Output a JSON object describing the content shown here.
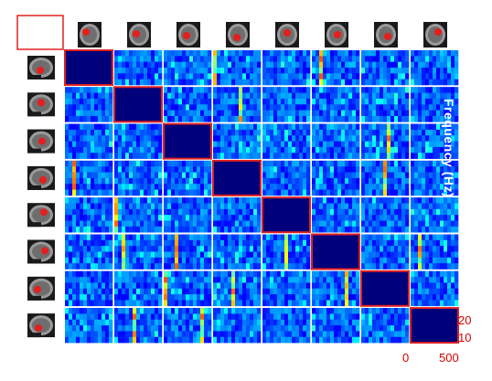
{
  "figure": {
    "grid_size": 8,
    "axis_label": "Frequency (Hz)",
    "freq_ticks": [
      "20",
      "10"
    ],
    "time_ticks": [
      "0",
      "500"
    ],
    "colors": {
      "diag_border": "#e02020",
      "diag_fill": "#00007a",
      "background_blue": "#0a2ac8",
      "tick_text": "#d40000",
      "gap": "#ffffff",
      "marker": "#e61e1e"
    },
    "row_thumbnails": [
      "sagittal-mri-thumbnail-1",
      "sagittal-mri-thumbnail-2",
      "sagittal-mri-thumbnail-3",
      "sagittal-mri-thumbnail-4",
      "sagittal-mri-thumbnail-5",
      "sagittal-mri-thumbnail-6",
      "sagittal-mri-thumbnail-7",
      "sagittal-mri-thumbnail-8"
    ],
    "col_thumbnails": [
      "axial-mri-thumbnail-1",
      "axial-mri-thumbnail-2",
      "axial-mri-thumbnail-3",
      "axial-mri-thumbnail-4",
      "axial-mri-thumbnail-5",
      "axial-mri-thumbnail-6",
      "axial-mri-thumbnail-7",
      "axial-mri-thumbnail-8"
    ]
  }
}
